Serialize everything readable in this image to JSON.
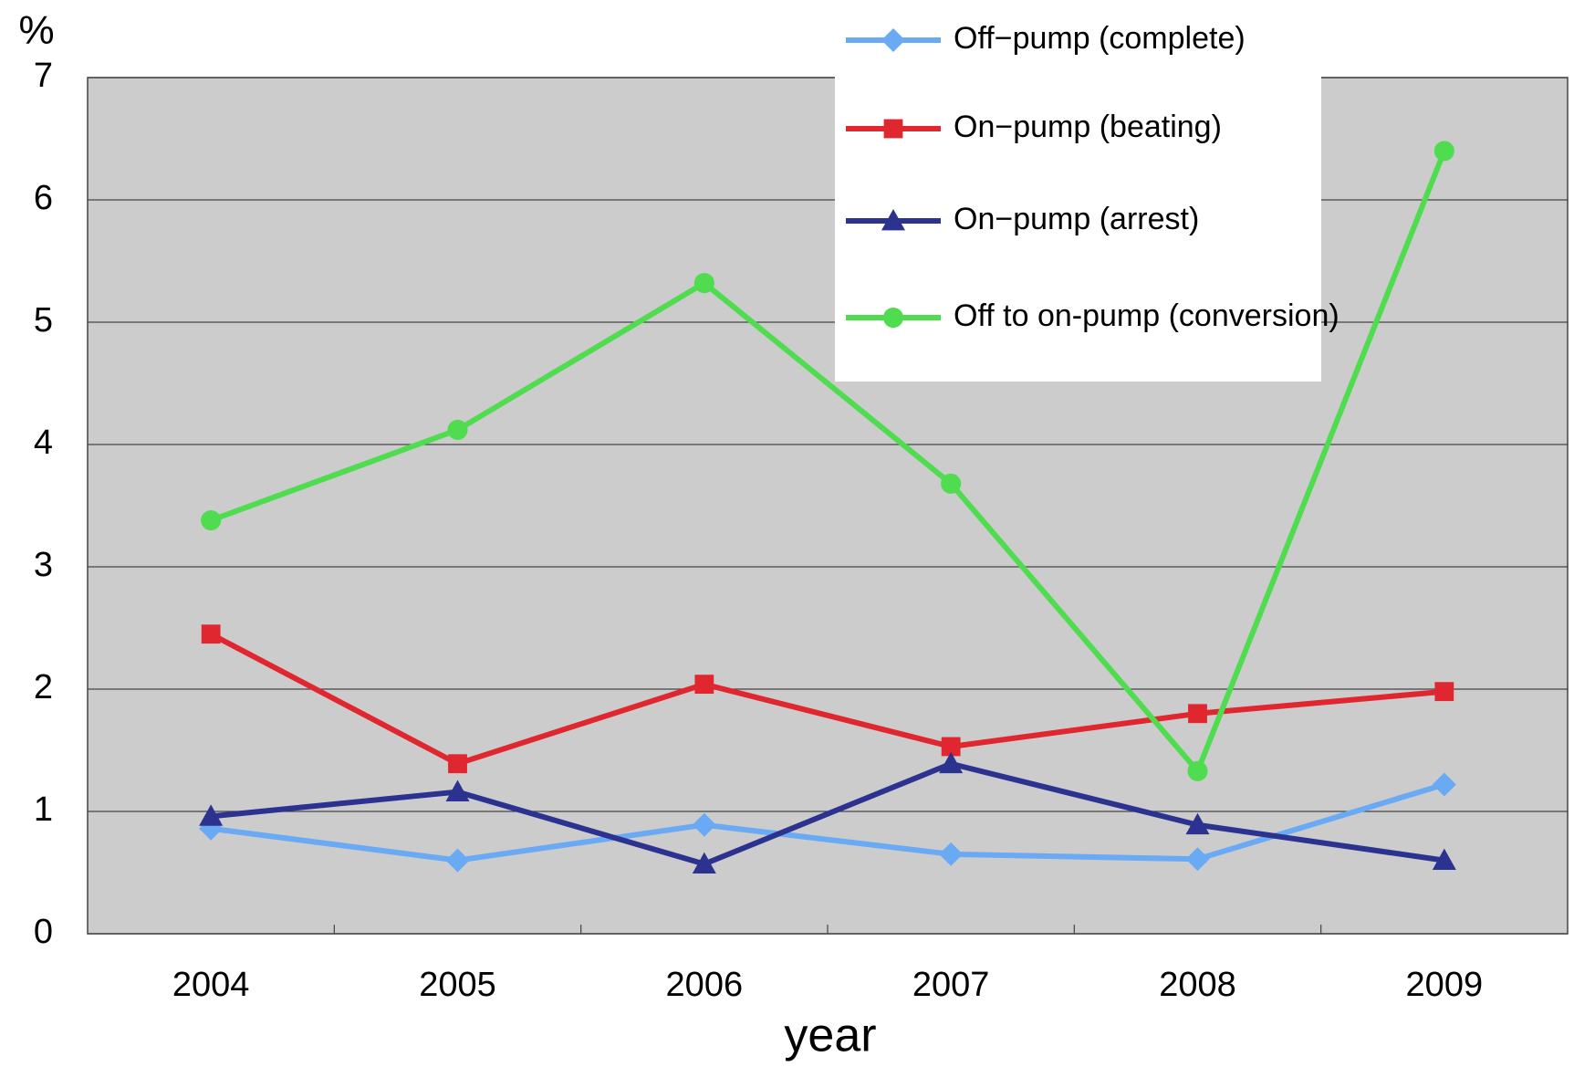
{
  "chart_data": {
    "type": "line",
    "y_label": "%",
    "x_label": "year",
    "categories": [
      "2004",
      "2005",
      "2006",
      "2007",
      "2008",
      "2009"
    ],
    "ylim": [
      0,
      7
    ],
    "yticks": [
      0,
      1,
      2,
      3,
      4,
      5,
      6,
      7
    ],
    "grid": true,
    "legend": "top-right",
    "series": [
      {
        "name": "Off−pump (complete)",
        "color": "#6aaaf5",
        "marker": "diamond",
        "values": [
          0.86,
          0.6,
          0.89,
          0.65,
          0.61,
          1.22
        ]
      },
      {
        "name": "On−pump (beating)",
        "color": "#e0262e",
        "marker": "square",
        "values": [
          2.45,
          1.39,
          2.04,
          1.53,
          1.8,
          1.98
        ]
      },
      {
        "name": "On−pump (arrest)",
        "color": "#2c3290",
        "marker": "triangle",
        "values": [
          0.96,
          1.16,
          0.57,
          1.39,
          0.89,
          0.6
        ]
      },
      {
        "name": "Off to on-pump (conversion)",
        "color": "#4fdc4f",
        "marker": "circle",
        "values": [
          3.38,
          4.12,
          5.32,
          3.68,
          1.33,
          6.4
        ]
      }
    ]
  }
}
